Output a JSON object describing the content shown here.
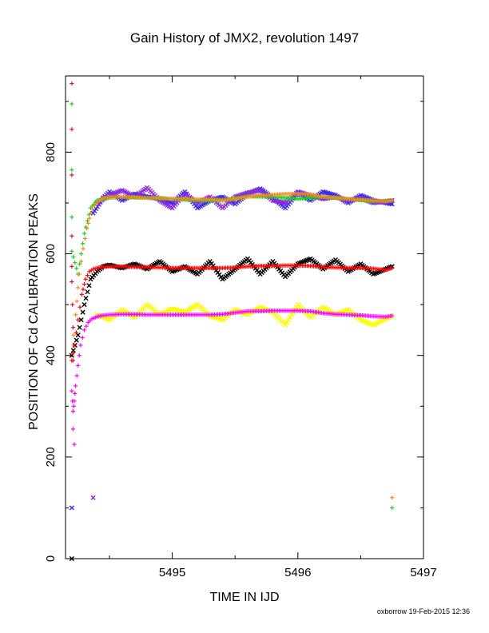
{
  "chart_data": {
    "type": "scatter",
    "title": "Gain History of JMX2, revolution 1497",
    "xlabel": "TIME IN IJD",
    "ylabel": "POSITION OF Cd CALIBRATION PEAKS",
    "xlim": [
      5494.15,
      5497.0
    ],
    "ylim": [
      0,
      950
    ],
    "xticks": [
      "5495",
      "5496",
      "5497"
    ],
    "yticks": [
      "0",
      "200",
      "400",
      "600",
      "800"
    ],
    "grid": false,
    "legend": "none",
    "colors": {
      "blue": "#3b2bf0",
      "purple": "#8a2be2",
      "orange": "#f28c1c",
      "green": "#22cc22",
      "black": "#000000",
      "red": "#ff0000",
      "yellow": "#ffff00",
      "magenta": "#ff00ff",
      "crimson": "#e0103a"
    },
    "series": [
      {
        "color": "blue",
        "marker": "x",
        "x": [
          5494.2,
          5494.37,
          5494.45,
          5494.5,
          5494.6,
          5494.7,
          5494.8,
          5494.9,
          5495.0,
          5495.1,
          5495.2,
          5495.3,
          5495.4,
          5495.5,
          5495.6,
          5495.7,
          5495.8,
          5495.9,
          5496.0,
          5496.1,
          5496.2,
          5496.3,
          5496.4,
          5496.5,
          5496.6,
          5496.75
        ],
        "y": [
          100,
          680,
          710,
          722,
          705,
          718,
          712,
          708,
          700,
          722,
          690,
          705,
          712,
          698,
          718,
          728,
          710,
          690,
          720,
          705,
          722,
          715,
          700,
          715,
          705,
          698
        ]
      },
      {
        "color": "purple",
        "marker": "x",
        "x": [
          5494.4,
          5494.5,
          5494.6,
          5494.7,
          5494.8,
          5494.9,
          5495.0,
          5495.1,
          5495.2,
          5495.3,
          5495.4,
          5495.5,
          5495.6,
          5495.7,
          5495.8,
          5495.9,
          5496.0,
          5496.1,
          5496.2,
          5496.3,
          5496.4,
          5496.5,
          5496.6,
          5496.75
        ],
        "y": [
          700,
          715,
          725,
          712,
          730,
          705,
          690,
          718,
          700,
          712,
          690,
          712,
          720,
          725,
          705,
          700,
          722,
          715,
          708,
          712,
          705,
          710,
          700,
          705
        ]
      },
      {
        "color": "green",
        "marker": "+",
        "x": [
          5494.2,
          5494.2,
          5494.2,
          5494.2,
          5494.25,
          5494.3,
          5494.35,
          5494.4,
          5494.5,
          5494.6,
          5494.8,
          5495.0,
          5495.2,
          5495.4,
          5495.6,
          5495.8,
          5496.0,
          5496.2,
          5496.4,
          5496.6,
          5496.75,
          5496.75
        ],
        "y": [
          895,
          765,
          672,
          605,
          560,
          640,
          690,
          705,
          710,
          712,
          710,
          708,
          705,
          705,
          713,
          712,
          708,
          712,
          708,
          703,
          705,
          100
        ]
      },
      {
        "color": "orange",
        "marker": "+",
        "x": [
          5494.2,
          5494.23,
          5494.26,
          5494.29,
          5494.32,
          5494.35,
          5494.38,
          5494.42,
          5494.46,
          5494.5,
          5494.6,
          5494.7,
          5494.8,
          5494.9,
          5495.0,
          5495.1,
          5495.2,
          5495.3,
          5495.4,
          5495.5,
          5495.6,
          5495.7,
          5495.8,
          5495.9,
          5496.0,
          5496.1,
          5496.2,
          5496.3,
          5496.4,
          5496.5,
          5496.6,
          5496.7,
          5496.75,
          5496.75
        ],
        "y": [
          400,
          480,
          560,
          610,
          650,
          680,
          695,
          705,
          710,
          712,
          712,
          711,
          710,
          710,
          708,
          708,
          707,
          707,
          706,
          708,
          712,
          715,
          716,
          718,
          718,
          717,
          712,
          710,
          708,
          706,
          705,
          703,
          705,
          120
        ]
      },
      {
        "color": "black",
        "marker": "x",
        "x": [
          5494.2,
          5494.25,
          5494.3,
          5494.35,
          5494.4,
          5494.45,
          5494.5,
          5494.6,
          5494.7,
          5494.8,
          5494.9,
          5495.0,
          5495.1,
          5495.2,
          5495.3,
          5495.4,
          5495.5,
          5495.6,
          5495.7,
          5495.8,
          5495.9,
          5496.0,
          5496.1,
          5496.2,
          5496.3,
          5496.4,
          5496.5,
          5496.6,
          5496.75,
          5494.2
        ],
        "y": [
          400,
          440,
          500,
          550,
          565,
          575,
          578,
          572,
          580,
          570,
          585,
          565,
          575,
          560,
          585,
          550,
          570,
          590,
          560,
          585,
          555,
          580,
          590,
          570,
          588,
          565,
          580,
          560,
          575,
          0
        ]
      },
      {
        "color": "red",
        "marker": "+",
        "x": [
          5494.2,
          5494.22,
          5494.25,
          5494.28,
          5494.31,
          5494.34,
          5494.37,
          5494.4,
          5494.45,
          5494.5,
          5494.6,
          5494.7,
          5494.8,
          5494.9,
          5495.0,
          5495.1,
          5495.2,
          5495.3,
          5495.4,
          5495.5,
          5495.6,
          5495.7,
          5495.8,
          5495.9,
          5496.0,
          5496.1,
          5496.2,
          5496.3,
          5496.4,
          5496.5,
          5496.6,
          5496.7,
          5496.75
        ],
        "y": [
          390,
          420,
          470,
          520,
          550,
          565,
          570,
          572,
          574,
          575,
          575,
          574,
          574,
          573,
          572,
          572,
          572,
          572,
          572,
          573,
          575,
          576,
          576,
          577,
          577,
          576,
          574,
          573,
          572,
          572,
          571,
          568,
          572
        ]
      },
      {
        "color": "yellow",
        "marker": "x",
        "x": [
          5494.4,
          5494.5,
          5494.6,
          5494.7,
          5494.8,
          5494.9,
          5495.0,
          5495.1,
          5495.2,
          5495.3,
          5495.4,
          5495.5,
          5495.6,
          5495.7,
          5495.8,
          5495.9,
          5496.0,
          5496.1,
          5496.2,
          5496.3,
          5496.4,
          5496.5,
          5496.6,
          5496.75
        ],
        "y": [
          480,
          470,
          490,
          475,
          500,
          480,
          492,
          485,
          500,
          478,
          470,
          490,
          480,
          495,
          485,
          460,
          500,
          475,
          495,
          480,
          490,
          470,
          460,
          478
        ]
      },
      {
        "color": "magenta",
        "marker": "+",
        "x": [
          5494.2,
          5494.21,
          5494.22,
          5494.23,
          5494.25,
          5494.27,
          5494.3,
          5494.33,
          5494.36,
          5494.4,
          5494.45,
          5494.5,
          5494.6,
          5494.7,
          5494.8,
          5494.9,
          5495.0,
          5495.1,
          5495.2,
          5495.3,
          5495.4,
          5495.5,
          5495.6,
          5495.7,
          5495.8,
          5495.9,
          5496.0,
          5496.1,
          5496.2,
          5496.3,
          5496.4,
          5496.5,
          5496.6,
          5496.7,
          5496.75,
          5494.22,
          5494.21
        ],
        "y": [
          330,
          290,
          310,
          340,
          380,
          420,
          450,
          465,
          472,
          476,
          479,
          480,
          481,
          481,
          480,
          480,
          480,
          480,
          480,
          480,
          481,
          484,
          487,
          487,
          488,
          488,
          488,
          487,
          483,
          481,
          480,
          479,
          477,
          476,
          478,
          225,
          255
        ]
      },
      {
        "color": "crimson",
        "marker": "+",
        "x": [
          5494.2,
          5494.2,
          5494.2,
          5494.2,
          5494.2,
          5494.2,
          5494.21,
          5494.21
        ],
        "y": [
          935,
          845,
          755,
          635,
          575,
          545,
          455,
          390
        ]
      },
      {
        "color": "purple",
        "marker": "x",
        "x": [
          5494.37
        ],
        "y": [
          120
        ]
      }
    ]
  },
  "footer": "oxborrow 19-Feb-2015 12:36"
}
